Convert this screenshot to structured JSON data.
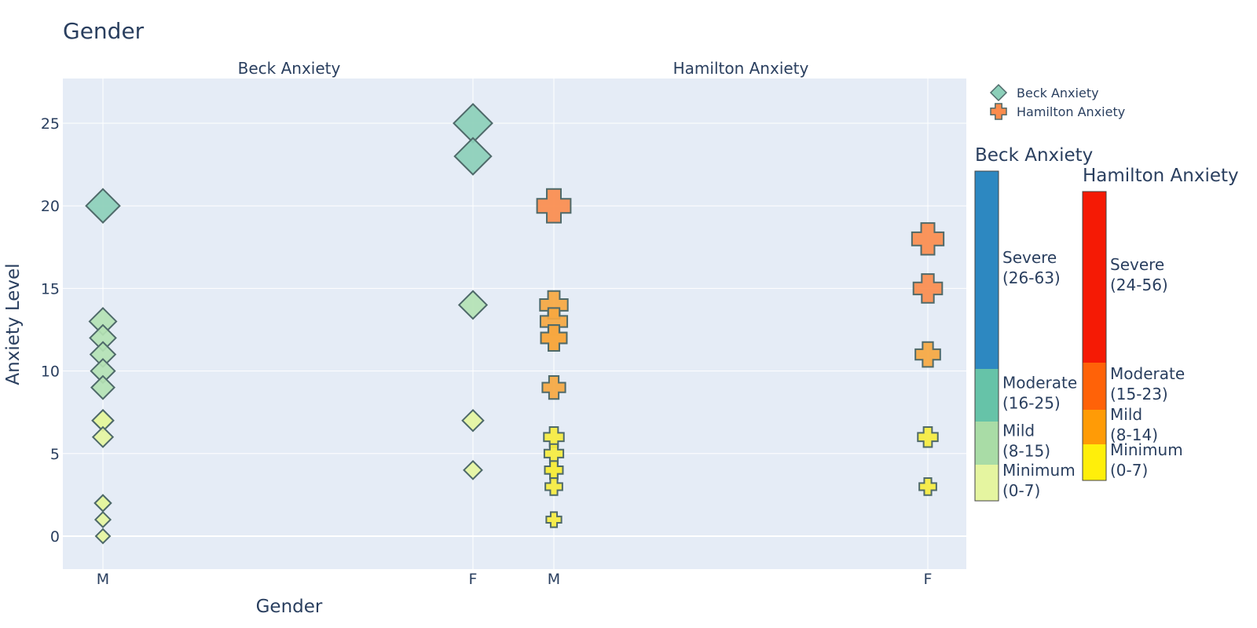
{
  "chart_data": {
    "type": "scatter",
    "title": "Gender",
    "xlabel": "Gender",
    "ylabel": "Anxiety Level",
    "ylim": [
      -2,
      27.5
    ],
    "yticks": [
      0,
      5,
      10,
      15,
      20,
      25
    ],
    "grid": true,
    "legend_placement": "top-right",
    "panels": [
      {
        "title": "Beck Anxiety",
        "categories": [
          "M",
          "F"
        ],
        "series": "Beck Anxiety",
        "points": [
          {
            "x": "M",
            "y": 20,
            "level": "Moderate"
          },
          {
            "x": "M",
            "y": 13,
            "level": "Mild"
          },
          {
            "x": "M",
            "y": 12,
            "level": "Mild"
          },
          {
            "x": "M",
            "y": 11,
            "level": "Mild"
          },
          {
            "x": "M",
            "y": 10,
            "level": "Mild"
          },
          {
            "x": "M",
            "y": 9,
            "level": "Mild"
          },
          {
            "x": "M",
            "y": 7,
            "level": "Minimum"
          },
          {
            "x": "M",
            "y": 7,
            "level": "Minimum"
          },
          {
            "x": "M",
            "y": 6,
            "level": "Minimum"
          },
          {
            "x": "M",
            "y": 2,
            "level": "Minimum"
          },
          {
            "x": "M",
            "y": 2,
            "level": "Minimum"
          },
          {
            "x": "M",
            "y": 1,
            "level": "Minimum"
          },
          {
            "x": "M",
            "y": 0,
            "level": "Minimum"
          },
          {
            "x": "F",
            "y": 25,
            "level": "Moderate"
          },
          {
            "x": "F",
            "y": 23,
            "level": "Moderate"
          },
          {
            "x": "F",
            "y": 14,
            "level": "Mild"
          },
          {
            "x": "F",
            "y": 7,
            "level": "Minimum"
          },
          {
            "x": "F",
            "y": 4,
            "level": "Minimum"
          }
        ]
      },
      {
        "title": "Hamilton Anxiety",
        "categories": [
          "M",
          "F"
        ],
        "series": "Hamilton Anxiety",
        "points": [
          {
            "x": "M",
            "y": 20,
            "level": "Moderate"
          },
          {
            "x": "M",
            "y": 14,
            "level": "Mild"
          },
          {
            "x": "M",
            "y": 13,
            "level": "Mild"
          },
          {
            "x": "M",
            "y": 12,
            "level": "Mild"
          },
          {
            "x": "M",
            "y": 12,
            "level": "Mild"
          },
          {
            "x": "M",
            "y": 9,
            "level": "Mild"
          },
          {
            "x": "M",
            "y": 6,
            "level": "Minimum"
          },
          {
            "x": "M",
            "y": 5,
            "level": "Minimum"
          },
          {
            "x": "M",
            "y": 4,
            "level": "Minimum"
          },
          {
            "x": "M",
            "y": 4,
            "level": "Minimum"
          },
          {
            "x": "M",
            "y": 3,
            "level": "Minimum"
          },
          {
            "x": "M",
            "y": 1,
            "level": "Minimum"
          },
          {
            "x": "F",
            "y": 18,
            "level": "Moderate"
          },
          {
            "x": "F",
            "y": 15,
            "level": "Moderate"
          },
          {
            "x": "F",
            "y": 11,
            "level": "Mild"
          },
          {
            "x": "F",
            "y": 6,
            "level": "Minimum"
          },
          {
            "x": "F",
            "y": 3,
            "level": "Minimum"
          }
        ]
      }
    ],
    "legend": [
      {
        "name": "Beck Anxiety",
        "symbol": "diamond",
        "color": "#8ccfb9"
      },
      {
        "name": "Hamilton Anxiety",
        "symbol": "cross",
        "color": "#fb8c4d"
      }
    ],
    "colorbars": [
      {
        "title": "Beck Anxiety",
        "bands": [
          {
            "label": [
              "Severe",
              "(26-63)"
            ],
            "color": "#2d88c1"
          },
          {
            "label": [
              "Moderate",
              "(16-25)"
            ],
            "color": "#66c3a8"
          },
          {
            "label": [
              "Mild",
              "(8-15)"
            ],
            "color": "#a9dca6"
          },
          {
            "label": [
              "Minimum",
              "(0-7)"
            ],
            "color": "#e5f5a0"
          }
        ]
      },
      {
        "title": "Hamilton Anxiety",
        "bands": [
          {
            "label": [
              "Severe",
              "(24-56)"
            ],
            "color": "#f51a05"
          },
          {
            "label": [
              "Moderate",
              "(15-23)"
            ],
            "color": "#ff6208"
          },
          {
            "label": [
              "Mild",
              "(8-14)"
            ],
            "color": "#ff9b06"
          },
          {
            "label": [
              "Minimum",
              "(0-7)"
            ],
            "color": "#ffef0a"
          }
        ]
      }
    ],
    "colors": {
      "plot_bg": "#e5ecf6",
      "grid": "#ffffff",
      "text": "#2a3f5f",
      "beck": {
        "Minimum": "#e5f5a0",
        "Mild": "#b4e2b4",
        "Moderate": "#8ccfb9"
      },
      "hamilton": {
        "Minimum": "#f6ec3e",
        "Mild": "#f6a740",
        "Moderate": "#fb8c4d"
      }
    }
  }
}
